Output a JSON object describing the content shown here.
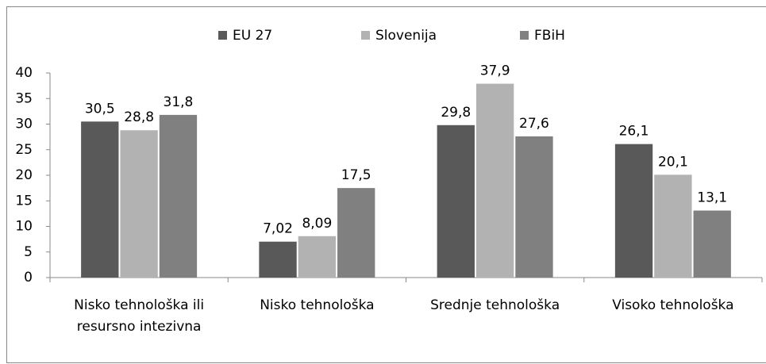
{
  "chart_data": {
    "type": "bar",
    "categories": [
      "Nisko tehnološka ili resursno intezivna",
      "Nisko tehnološka",
      "Srednje tehnološka",
      "Visoko tehnološka"
    ],
    "series": [
      {
        "name": "EU 27",
        "color": "#595959",
        "values": [
          30.5,
          7.02,
          29.8,
          26.1
        ],
        "value_labels": [
          "30,5",
          "7,02",
          "29,8",
          "26,1"
        ]
      },
      {
        "name": "Slovenija",
        "color": "#b2b2b2",
        "values": [
          28.8,
          8.09,
          37.9,
          20.1
        ],
        "value_labels": [
          "28,8",
          "8,09",
          "37,9",
          "20,1"
        ]
      },
      {
        "name": "FBiH",
        "color": "#808080",
        "values": [
          31.8,
          17.5,
          27.6,
          13.1
        ],
        "value_labels": [
          "31,8",
          "17,5",
          "27,6",
          "13,1"
        ]
      }
    ],
    "ylim": [
      0,
      40
    ],
    "yticks": [
      0,
      5,
      10,
      15,
      20,
      25,
      30,
      35,
      40
    ],
    "grid": false,
    "legend": "top"
  }
}
